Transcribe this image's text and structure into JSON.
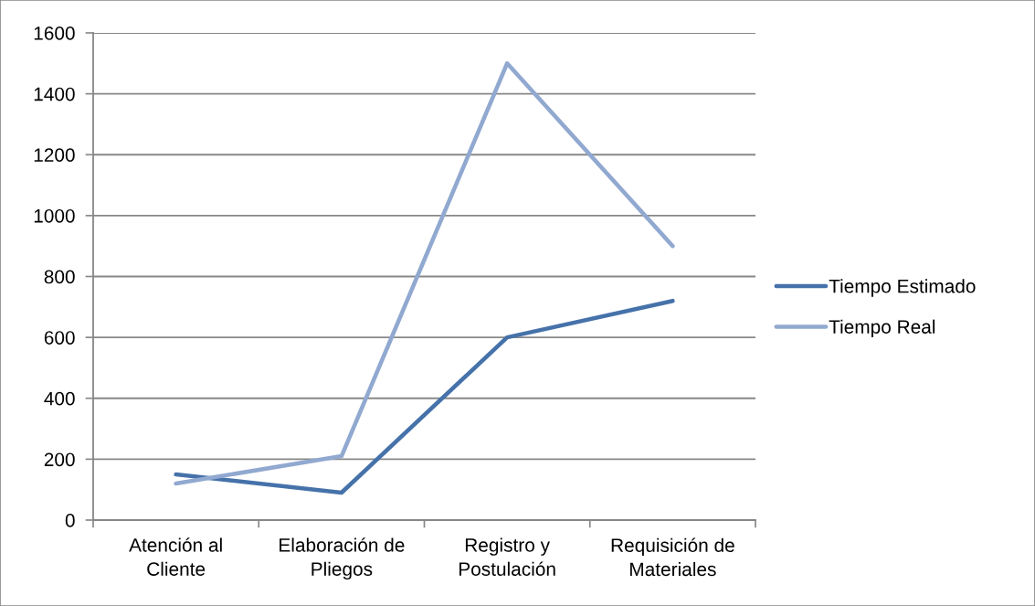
{
  "chart_data": {
    "type": "line",
    "categories": [
      "Atención al\nCliente",
      "Elaboración de\nPliegos",
      "Registro y\nPostulación",
      "Requisición de\nMateriales"
    ],
    "series": [
      {
        "name": "Tiempo Estimado",
        "color": "#4672aa",
        "values": [
          150,
          90,
          600,
          720
        ]
      },
      {
        "name": "Tiempo Real",
        "color": "#91a9d0",
        "values": [
          120,
          210,
          1500,
          900
        ]
      }
    ],
    "ylim": [
      0,
      1600
    ],
    "yticks": [
      0,
      200,
      400,
      600,
      800,
      1000,
      1200,
      1400,
      1600
    ],
    "grid": "y",
    "legend": "right"
  }
}
